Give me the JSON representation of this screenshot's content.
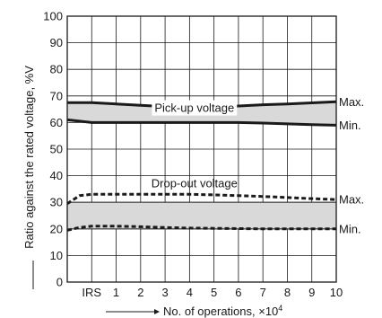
{
  "chart_data": {
    "type": "area",
    "xlabel": "No. of operations, ×10",
    "xlabel_exponent": "4",
    "ylabel": "Ratio against the rated voltage, %V",
    "categories": [
      "IRS",
      "1",
      "2",
      "3",
      "4",
      "5",
      "6",
      "7",
      "8",
      "9",
      "10"
    ],
    "x_range": [
      -1,
      10
    ],
    "x_tick_labels": [
      "IRS",
      "1",
      "2",
      "3",
      "4",
      "5",
      "6",
      "7",
      "8",
      "9",
      "10"
    ],
    "ylim": [
      0,
      100
    ],
    "y_ticks": [
      0,
      10,
      20,
      30,
      40,
      50,
      60,
      70,
      80,
      90,
      100
    ],
    "grid": true,
    "bands": [
      {
        "name": "Pick-up voltage",
        "line_style": "solid",
        "fill": "#d9d9d9",
        "upper": {
          "label": "Max.",
          "points": [
            [
              -1,
              67.5
            ],
            [
              0,
              67.5
            ],
            [
              1,
              67
            ],
            [
              2,
              66.5
            ],
            [
              3,
              66
            ],
            [
              4,
              65.5
            ],
            [
              4.5,
              65.5
            ],
            [
              5,
              65.7
            ],
            [
              6,
              66.2
            ],
            [
              7,
              66.7
            ],
            [
              8,
              67
            ],
            [
              9,
              67.4
            ],
            [
              10,
              67.8
            ]
          ]
        },
        "lower": {
          "label": "Min.",
          "points": [
            [
              -1,
              61
            ],
            [
              0,
              60
            ],
            [
              1,
              60
            ],
            [
              2,
              60
            ],
            [
              3,
              60
            ],
            [
              4,
              60
            ],
            [
              5,
              60
            ],
            [
              6,
              60
            ],
            [
              7,
              59.8
            ],
            [
              8,
              59.5
            ],
            [
              9,
              59.2
            ],
            [
              10,
              59
            ]
          ]
        }
      },
      {
        "name": "Drop-out voltage",
        "line_style": "dashed",
        "fill": "#d9d9d9",
        "upper": {
          "label": "Max.",
          "points": [
            [
              -1,
              29.5
            ],
            [
              -0.5,
              32.5
            ],
            [
              0,
              33
            ],
            [
              1,
              33
            ],
            [
              2,
              33
            ],
            [
              3,
              33
            ],
            [
              4,
              33
            ],
            [
              5,
              32.8
            ],
            [
              6,
              32.5
            ],
            [
              7,
              32.2
            ],
            [
              8,
              31.8
            ],
            [
              9,
              31.4
            ],
            [
              10,
              31
            ]
          ]
        },
        "lower": {
          "label": "Min.",
          "points": [
            [
              -1,
              19.5
            ],
            [
              -0.5,
              20.5
            ],
            [
              0,
              21
            ],
            [
              1,
              21
            ],
            [
              2,
              20.8
            ],
            [
              3,
              20.5
            ],
            [
              4,
              20.3
            ],
            [
              5,
              20.2
            ],
            [
              6,
              20.1
            ],
            [
              7,
              20
            ],
            [
              8,
              20
            ],
            [
              9,
              20
            ],
            [
              10,
              20
            ]
          ]
        },
        "inner_band": [
          30,
          20
        ]
      }
    ]
  }
}
